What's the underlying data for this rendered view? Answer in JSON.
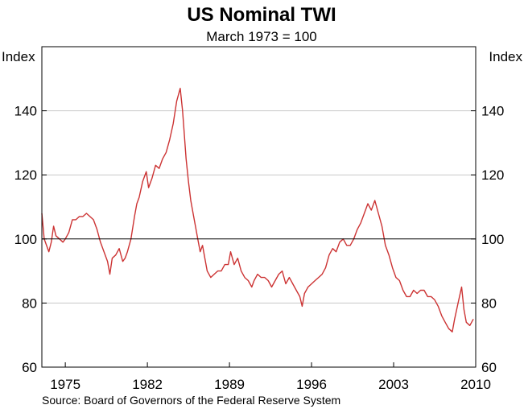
{
  "chart_data": {
    "type": "line",
    "title": "US Nominal TWI",
    "subtitle": "March 1973 = 100",
    "ylabel_left": "Index",
    "ylabel_right": "Index",
    "source": "Source: Board of Governors of the Federal Reserve System",
    "xlim": [
      1973.0,
      2010.0
    ],
    "ylim": [
      60,
      160
    ],
    "x_ticks": [
      1975,
      1982,
      1989,
      1996,
      2003,
      2010
    ],
    "y_ticks": [
      60,
      80,
      100,
      120,
      140
    ],
    "gridlines": [
      80,
      100,
      120,
      140
    ],
    "reference_line": 100,
    "series": [
      {
        "color": "#cc3333",
        "x": [
          1973.0,
          1973.2,
          1973.4,
          1973.6,
          1973.8,
          1974.0,
          1974.2,
          1974.5,
          1974.8,
          1975.0,
          1975.3,
          1975.6,
          1975.9,
          1976.2,
          1976.5,
          1976.8,
          1977.1,
          1977.4,
          1977.7,
          1978.0,
          1978.3,
          1978.6,
          1978.8,
          1979.0,
          1979.3,
          1979.6,
          1979.9,
          1980.1,
          1980.3,
          1980.6,
          1980.9,
          1981.1,
          1981.3,
          1981.6,
          1981.9,
          1982.1,
          1982.4,
          1982.7,
          1983.0,
          1983.3,
          1983.6,
          1983.9,
          1984.2,
          1984.5,
          1984.8,
          1985.0,
          1985.1,
          1985.3,
          1985.5,
          1985.7,
          1985.9,
          1986.1,
          1986.3,
          1986.5,
          1986.7,
          1986.9,
          1987.1,
          1987.4,
          1987.7,
          1988.0,
          1988.3,
          1988.6,
          1988.9,
          1989.1,
          1989.4,
          1989.7,
          1990.0,
          1990.3,
          1990.6,
          1990.9,
          1991.1,
          1991.4,
          1991.7,
          1992.0,
          1992.3,
          1992.6,
          1992.9,
          1993.2,
          1993.5,
          1993.8,
          1994.1,
          1994.4,
          1994.7,
          1995.0,
          1995.2,
          1995.4,
          1995.7,
          1996.0,
          1996.3,
          1996.6,
          1996.9,
          1997.2,
          1997.5,
          1997.8,
          1998.1,
          1998.4,
          1998.7,
          1999.0,
          1999.3,
          1999.6,
          1999.9,
          2000.2,
          2000.5,
          2000.8,
          2001.1,
          2001.4,
          2001.7,
          2002.0,
          2002.3,
          2002.6,
          2002.9,
          2003.2,
          2003.5,
          2003.8,
          2004.1,
          2004.4,
          2004.7,
          2005.0,
          2005.3,
          2005.6,
          2005.9,
          2006.2,
          2006.5,
          2006.8,
          2007.1,
          2007.4,
          2007.7,
          2008.0,
          2008.2,
          2008.5,
          2008.8,
          2009.0,
          2009.2,
          2009.5,
          2009.8
        ],
        "y": [
          108,
          100,
          98,
          96,
          99,
          104,
          101,
          100,
          99,
          100,
          102,
          106,
          106,
          107,
          107,
          108,
          107,
          106,
          103,
          99,
          96,
          93,
          89,
          94,
          95,
          97,
          93,
          94,
          96,
          100,
          107,
          111,
          113,
          118,
          121,
          116,
          119,
          123,
          122,
          125,
          127,
          131,
          136,
          143,
          147,
          140,
          135,
          125,
          118,
          112,
          108,
          104,
          100,
          96,
          98,
          94,
          90,
          88,
          89,
          90,
          90,
          92,
          92,
          96,
          92,
          94,
          90,
          88,
          87,
          85,
          87,
          89,
          88,
          88,
          87,
          85,
          87,
          89,
          90,
          86,
          88,
          86,
          84,
          82,
          79,
          83,
          85,
          86,
          87,
          88,
          89,
          91,
          95,
          97,
          96,
          99,
          100,
          98,
          98,
          100,
          103,
          105,
          108,
          111,
          109,
          112,
          108,
          104,
          98,
          95,
          91,
          88,
          87,
          84,
          82,
          82,
          84,
          83,
          84,
          84,
          82,
          82,
          81,
          79,
          76,
          74,
          72,
          71,
          75,
          80,
          85,
          78,
          74,
          73,
          75
        ]
      }
    ]
  }
}
